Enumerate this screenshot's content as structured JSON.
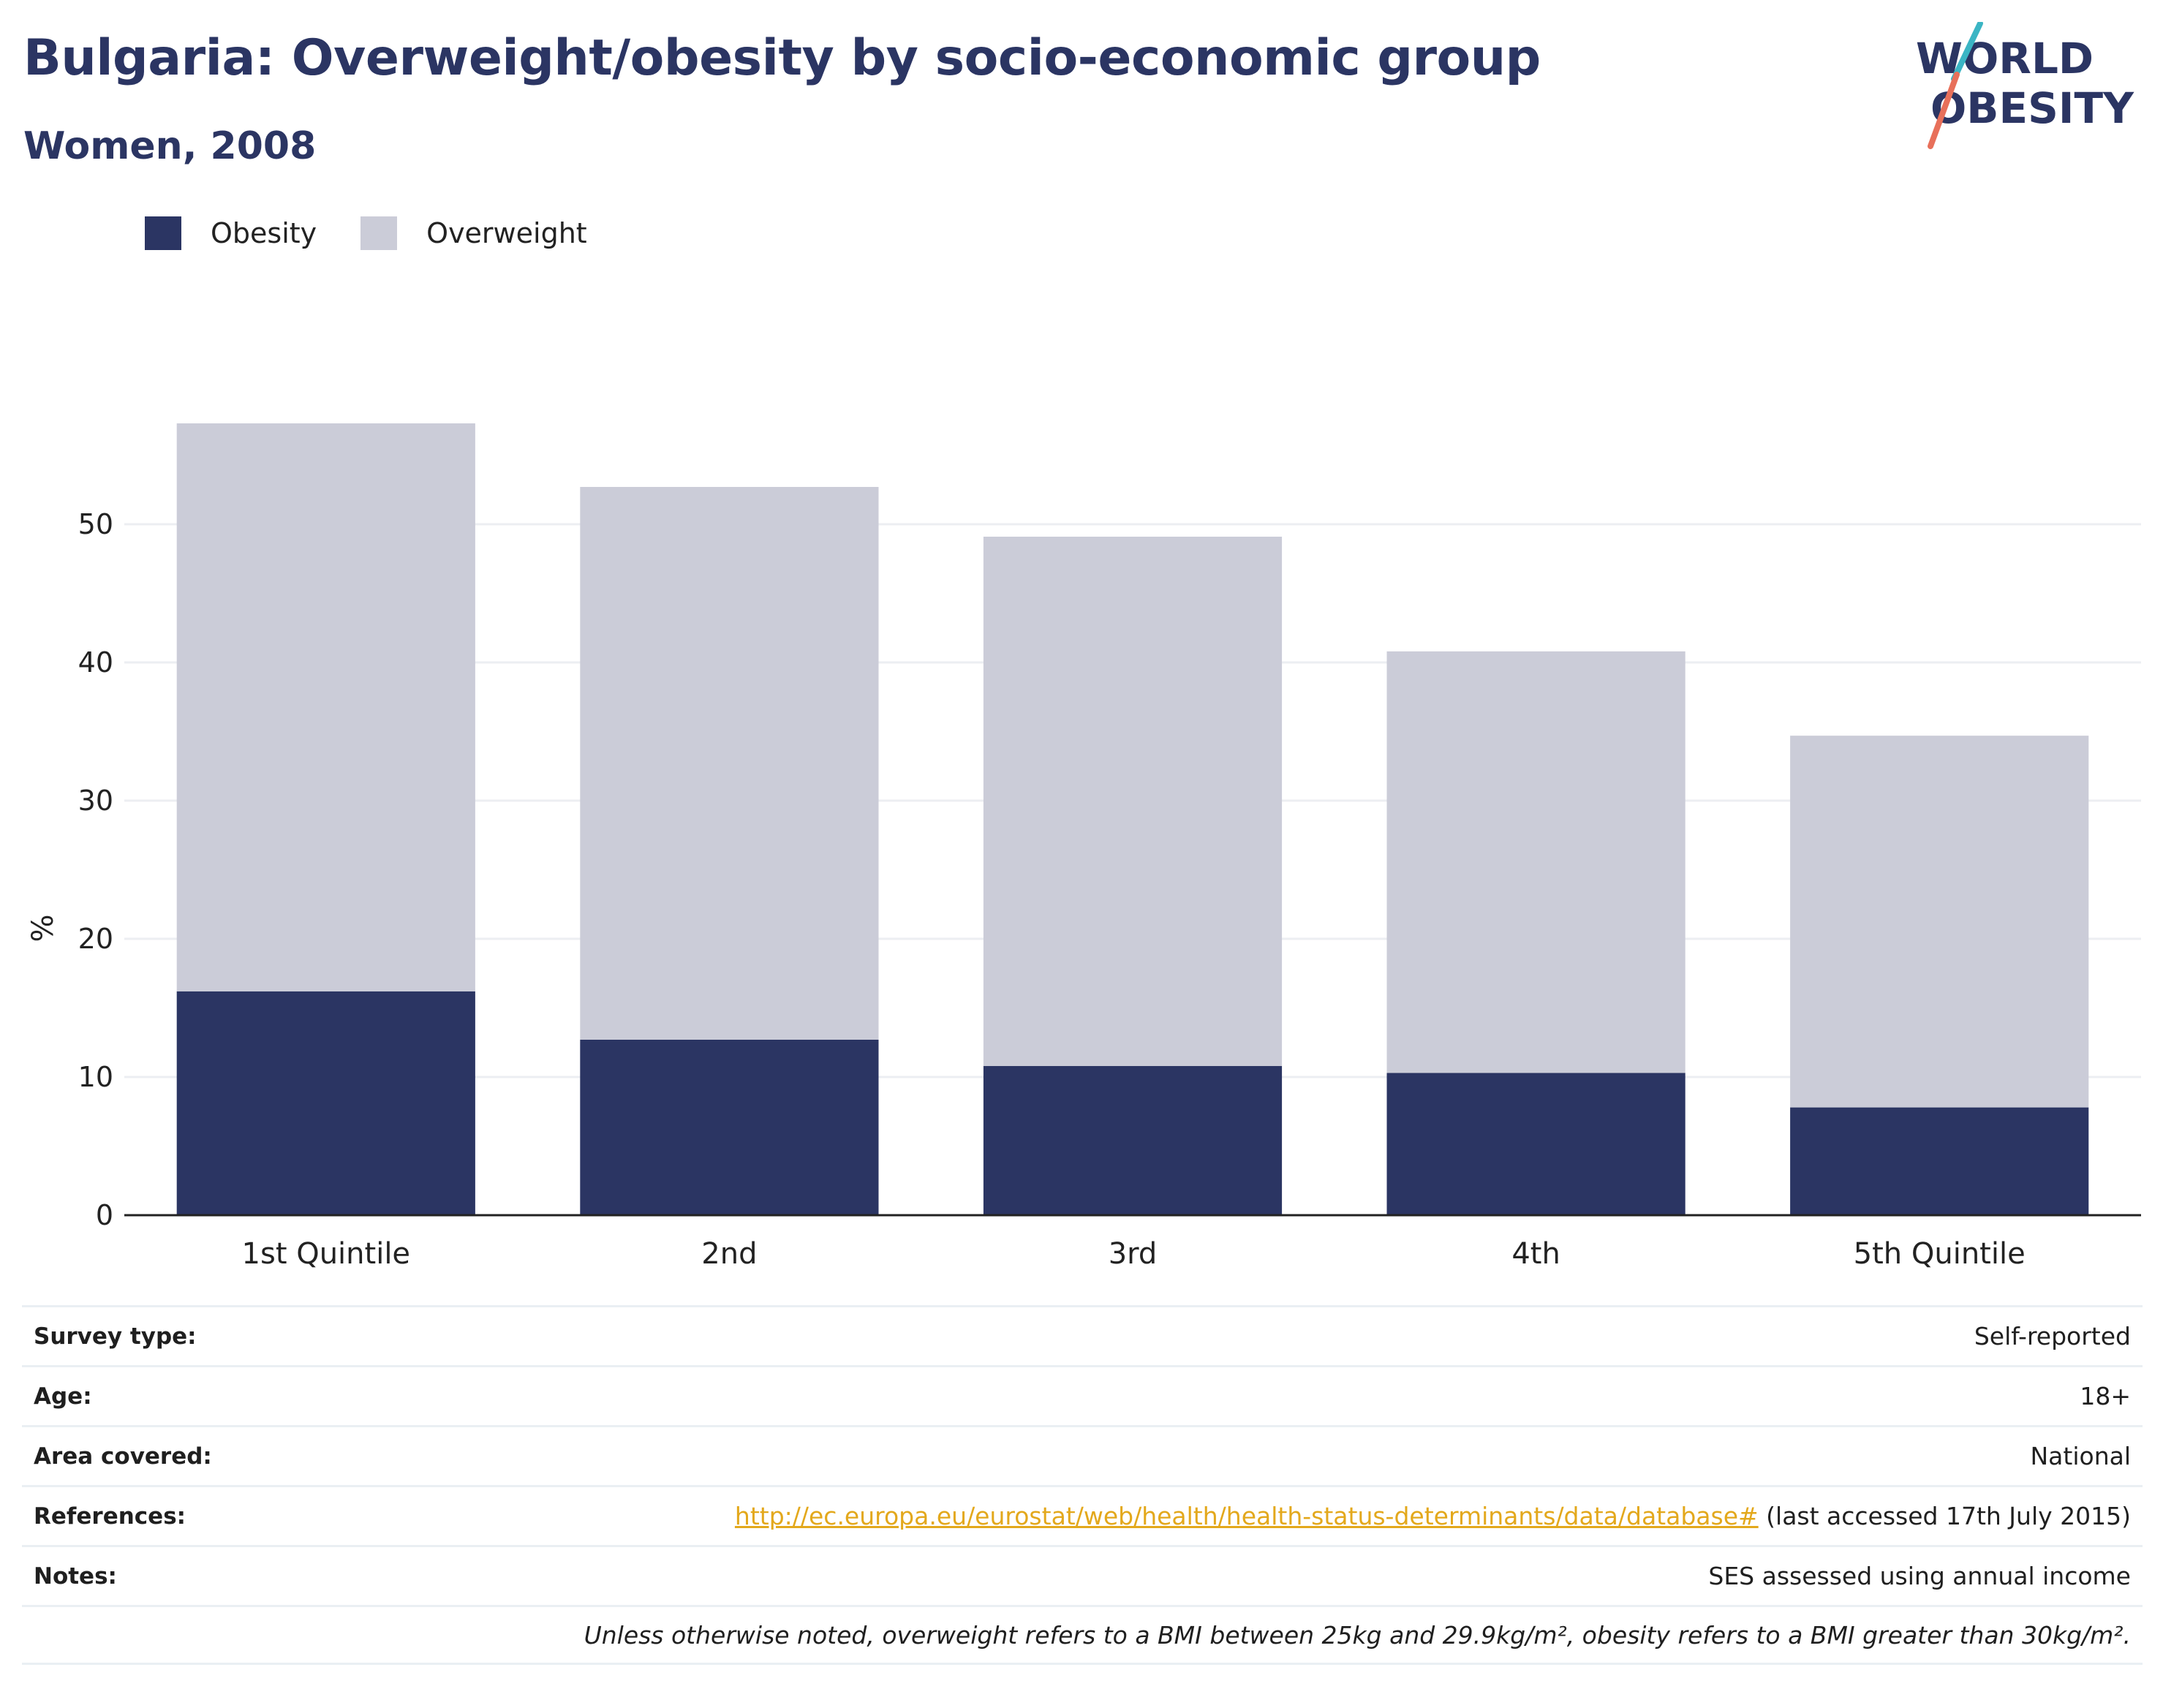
{
  "header": {
    "title": "Bulgaria: Overweight/obesity by socio-economic group",
    "subtitle": "Women, 2008"
  },
  "logo": {
    "line1": "WORLD",
    "line2": "OBESITY",
    "accent_teal": "#3bb5c4",
    "accent_coral": "#e8705a",
    "text_color": "#2b3563"
  },
  "legend": [
    {
      "label": "Obesity",
      "color": "#2b3563"
    },
    {
      "label": "Overweight",
      "color": "#cbccd8"
    }
  ],
  "chart_data": {
    "type": "bar",
    "stacked": true,
    "categories": [
      "1st Quintile",
      "2nd",
      "3rd",
      "4th",
      "5th Quintile"
    ],
    "series": [
      {
        "name": "Obesity",
        "values": [
          16.2,
          12.7,
          10.8,
          10.3,
          7.8
        ],
        "color": "#2b3563"
      },
      {
        "name": "Overweight",
        "values": [
          41.1,
          40.0,
          38.3,
          30.5,
          26.9
        ],
        "color": "#cbccd8"
      }
    ],
    "title": "",
    "xlabel": "",
    "ylabel": "%",
    "ylim": [
      0,
      60
    ],
    "yticks": [
      0,
      10,
      20,
      30,
      40,
      50
    ],
    "grid": true,
    "legend_position": "top-left"
  },
  "info": {
    "rows": [
      {
        "key": "Survey type:",
        "value": "Self-reported"
      },
      {
        "key": "Age:",
        "value": "18+"
      },
      {
        "key": "Area covered:",
        "value": "National"
      },
      {
        "key": "References:",
        "link": "http://ec.europa.eu/eurostat/web/health/health-status-determinants/data/database#",
        "value": " (last accessed 17th July 2015)"
      },
      {
        "key": "Notes:",
        "value": "SES assessed using annual income"
      }
    ],
    "footnote": "Unless otherwise noted, overweight refers to a BMI between 25kg and 29.9kg/m², obesity refers to a BMI greater than 30kg/m²."
  }
}
